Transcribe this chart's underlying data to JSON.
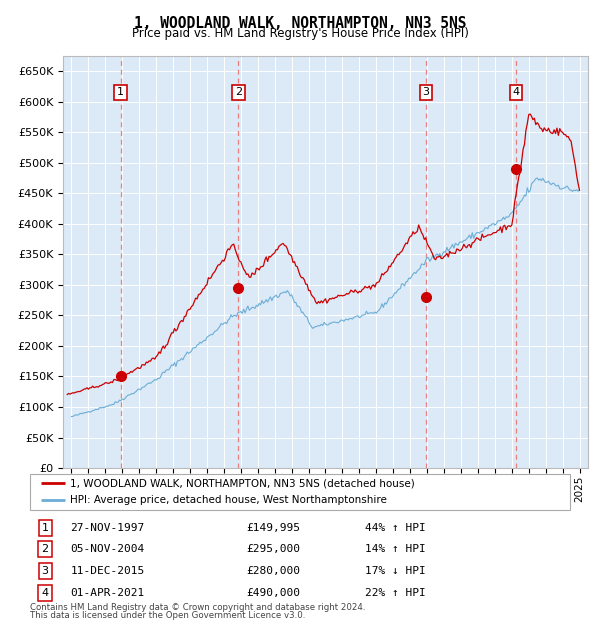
{
  "title": "1, WOODLAND WALK, NORTHAMPTON, NN3 5NS",
  "subtitle": "Price paid vs. HM Land Registry's House Price Index (HPI)",
  "legend_line1": "1, WOODLAND WALK, NORTHAMPTON, NN3 5NS (detached house)",
  "legend_line2": "HPI: Average price, detached house, West Northamptonshire",
  "footer1": "Contains HM Land Registry data © Crown copyright and database right 2024.",
  "footer2": "This data is licensed under the Open Government Licence v3.0.",
  "transactions": [
    {
      "num": 1,
      "date": "27-NOV-1997",
      "price": 149995,
      "pct": "44%",
      "dir": "↑",
      "x_year": 1997.91
    },
    {
      "num": 2,
      "date": "05-NOV-2004",
      "price": 295000,
      "pct": "14%",
      "dir": "↑",
      "x_year": 2004.85
    },
    {
      "num": 3,
      "date": "11-DEC-2015",
      "price": 280000,
      "pct": "17%",
      "dir": "↓",
      "x_year": 2015.94
    },
    {
      "num": 4,
      "date": "01-APR-2021",
      "price": 490000,
      "pct": "22%",
      "dir": "↑",
      "x_year": 2021.25
    }
  ],
  "hpi_color": "#6baed6",
  "price_color": "#cc0000",
  "dashed_color": "#e88080",
  "bg_color": "#dce9f7",
  "ylim_max": 675000,
  "yticks": [
    0,
    50000,
    100000,
    150000,
    200000,
    250000,
    300000,
    350000,
    400000,
    450000,
    500000,
    550000,
    600000,
    650000
  ],
  "xlim_start": 1994.5,
  "xlim_end": 2025.5
}
